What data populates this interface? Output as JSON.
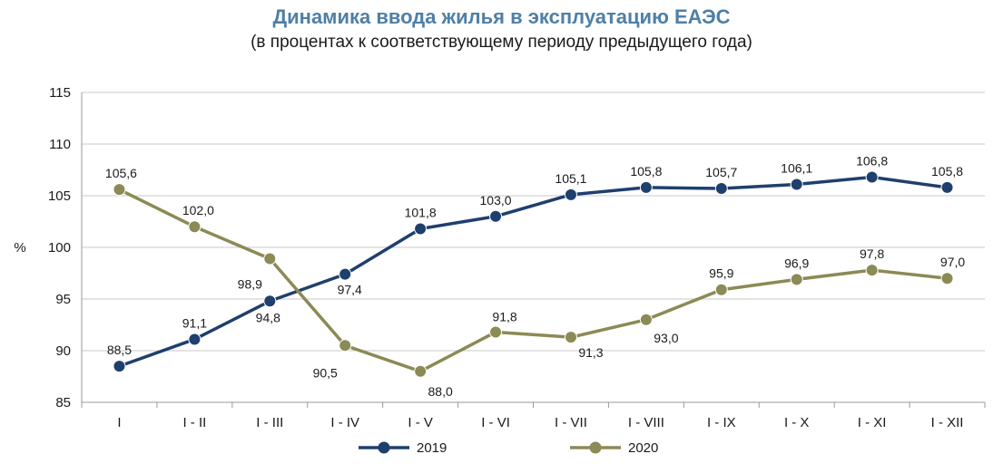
{
  "chart_data": {
    "type": "line",
    "title": "Динамика ввода жилья в эксплуатацию ЕАЭС",
    "subtitle": "(в процентах к соответствующему периоду предыдущего года)",
    "ylabel": "%",
    "xlabel": "",
    "ylim": [
      85,
      115
    ],
    "yticks": [
      85,
      90,
      95,
      100,
      105,
      110,
      115
    ],
    "grid": true,
    "legend": "bottom",
    "categories": [
      "I",
      "I - II",
      "I - III",
      "I - IV",
      "I - V",
      "I - VI",
      "I - VII",
      "I - VIII",
      "I - IX",
      "I - X",
      "I - XI",
      "I - XII"
    ],
    "series": [
      {
        "name": "2019",
        "color": "#1f3f6e",
        "values": [
          88.5,
          91.1,
          94.8,
          97.4,
          101.8,
          103.0,
          105.1,
          105.8,
          105.7,
          106.1,
          106.8,
          105.8
        ],
        "labels": [
          "88,5",
          "91,1",
          "94,8",
          "97,4",
          "101,8",
          "103,0",
          "105,1",
          "105,8",
          "105,7",
          "106,1",
          "106,8",
          "105,8"
        ]
      },
      {
        "name": "2020",
        "color": "#8c8a55",
        "values": [
          105.6,
          102.0,
          98.9,
          90.5,
          88.0,
          91.8,
          91.3,
          93.0,
          95.9,
          96.9,
          97.8,
          97.0
        ],
        "labels": [
          "105,6",
          "102,0",
          "98,9",
          "90,5",
          "88,0",
          "91,8",
          "91,3",
          "93,0",
          "95,9",
          "96,9",
          "97,8",
          "97,0"
        ]
      }
    ]
  }
}
